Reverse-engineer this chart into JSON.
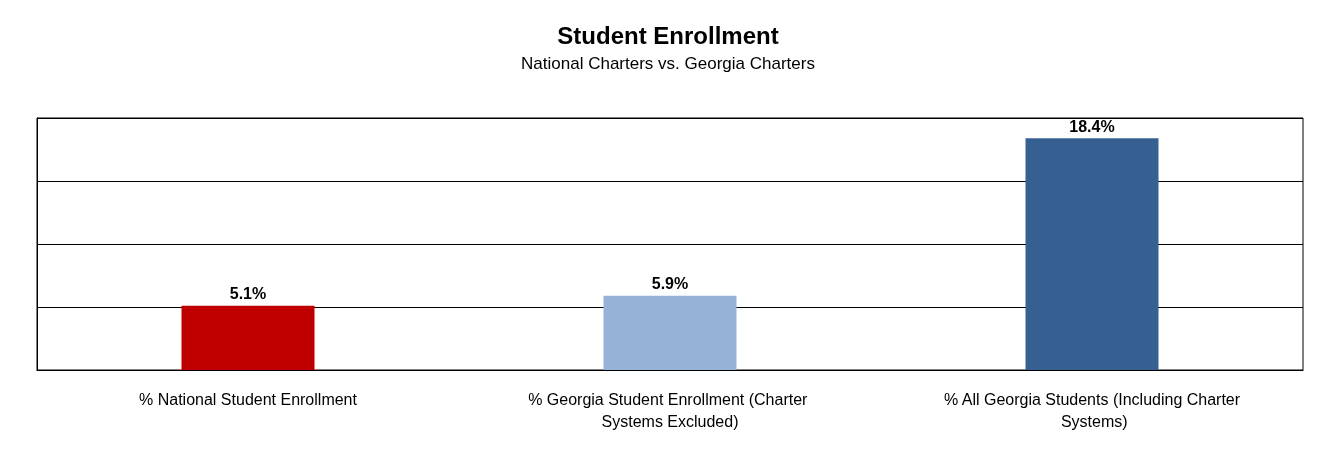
{
  "chart_data": {
    "type": "bar",
    "title": "Student Enrollment",
    "subtitle": "National Charters vs. Georgia Charters",
    "categories": [
      "% National Student Enrollment",
      "% Georgia Student Enrollment (Charter Systems Excluded)",
      "% All Georgia Students (Including Charter Systems)"
    ],
    "values": [
      5.1,
      5.9,
      18.4
    ],
    "colors": [
      "#c00000",
      "#95b3d7",
      "#366092"
    ],
    "value_labels": [
      "5.1%",
      "5.9%",
      "18.4%"
    ],
    "ylim": [
      0,
      20
    ],
    "yticks": [
      {
        "value": 0,
        "label": null
      },
      {
        "value": 5,
        "label": null
      },
      {
        "value": 10,
        "label": null
      },
      {
        "value": 15,
        "label": null
      },
      {
        "value": 20,
        "label": null
      }
    ],
    "grid": "y",
    "tick_labels": "x"
  }
}
